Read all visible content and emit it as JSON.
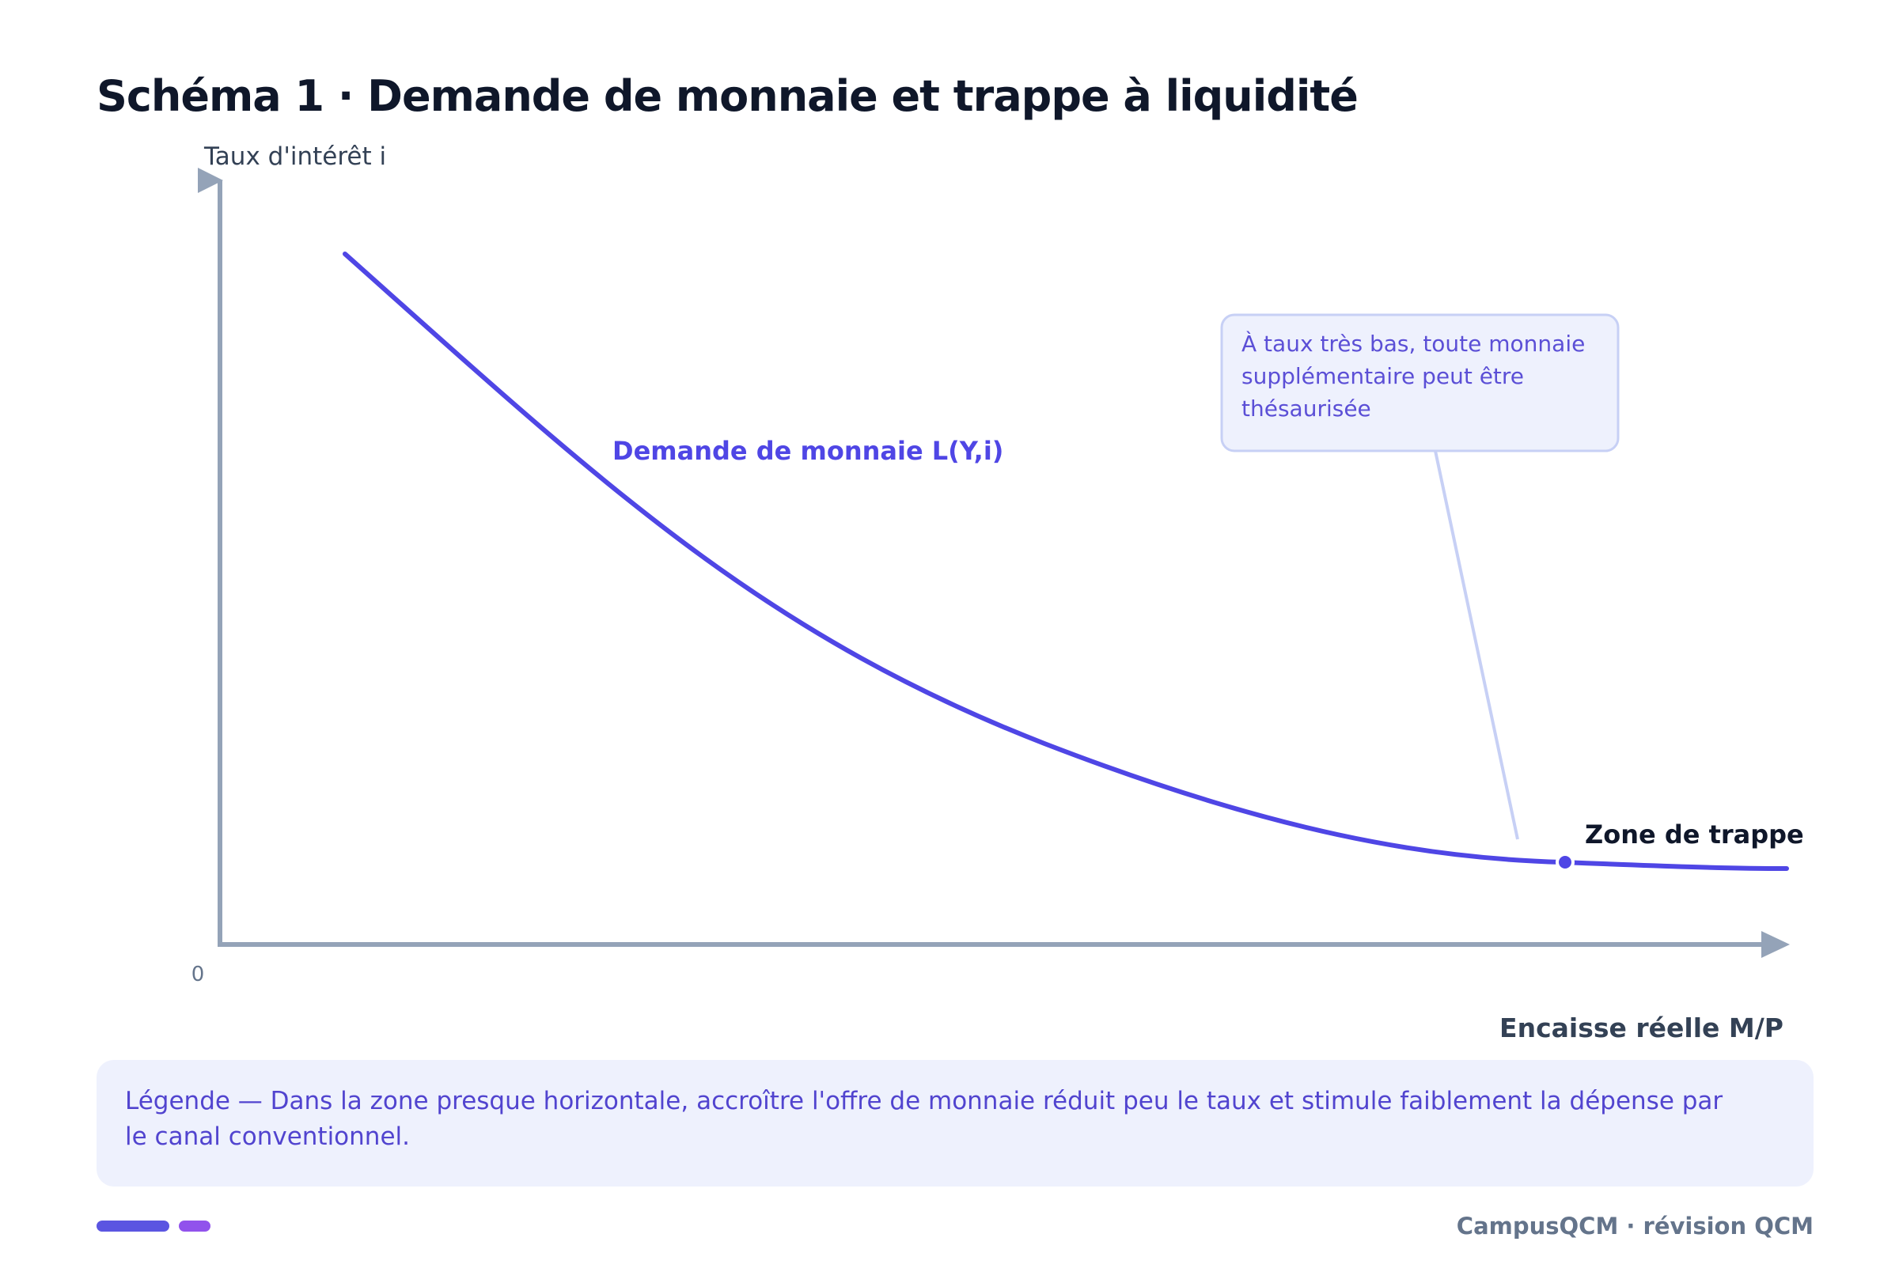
{
  "title": "Schéma 1 · Demande de monnaie et trappe à liquidité",
  "axes": {
    "y_label": "Taux d'intérêt i",
    "x_label": "Encaisse réelle M/P",
    "origin_label": "0"
  },
  "curve": {
    "label": "Demande de monnaie L(Y,i)"
  },
  "trap_marker": {
    "label": "Zone de trappe"
  },
  "callout": {
    "lines": [
      "À taux très bas, toute monnaie",
      "supplémentaire peut être",
      "thésaurisée"
    ]
  },
  "legend": {
    "text": "Légende — Dans la zone presque horizontale, accroître l'offre de monnaie réduit peu le taux et stimule faiblement la dépense par le canal conventionnel."
  },
  "footer": {
    "brand": "CampusQCM · révision QCM"
  },
  "colors": {
    "curve": "#4f46e5",
    "axis": "#94a3b8",
    "title": "#0f172a",
    "callout_bg": "#eef1fd",
    "callout_border": "#c7d0f5",
    "callout_text": "#5b4fd6",
    "legend_bg": "#eef1fd",
    "accent_purple": "#9152ec"
  }
}
